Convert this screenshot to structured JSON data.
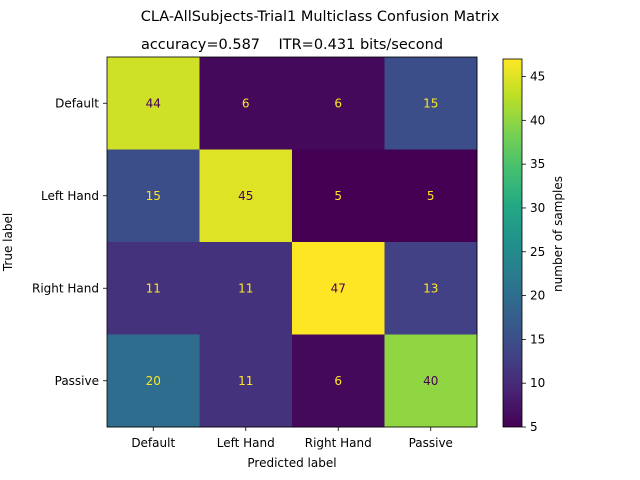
{
  "chart_data": {
    "type": "heatmap",
    "title": "CLA-AllSubjects-Trial1 Multiclass Confusion Matrix",
    "subtitle": "accuracy=0.587    ITR=0.431 bits/second",
    "xlabel": "Predicted label",
    "ylabel": "True label",
    "x_categories": [
      "Default",
      "Left Hand",
      "Right Hand",
      "Passive"
    ],
    "y_categories": [
      "Default",
      "Left Hand",
      "Right Hand",
      "Passive"
    ],
    "values": [
      [
        44,
        6,
        6,
        15
      ],
      [
        15,
        45,
        5,
        5
      ],
      [
        11,
        11,
        47,
        13
      ],
      [
        20,
        11,
        6,
        40
      ]
    ],
    "colorbar": {
      "label": "number of samples",
      "range": [
        5,
        47
      ],
      "ticks": [
        5,
        10,
        15,
        20,
        25,
        30,
        35,
        40,
        45
      ]
    },
    "colormap": "viridis",
    "grid": false
  }
}
